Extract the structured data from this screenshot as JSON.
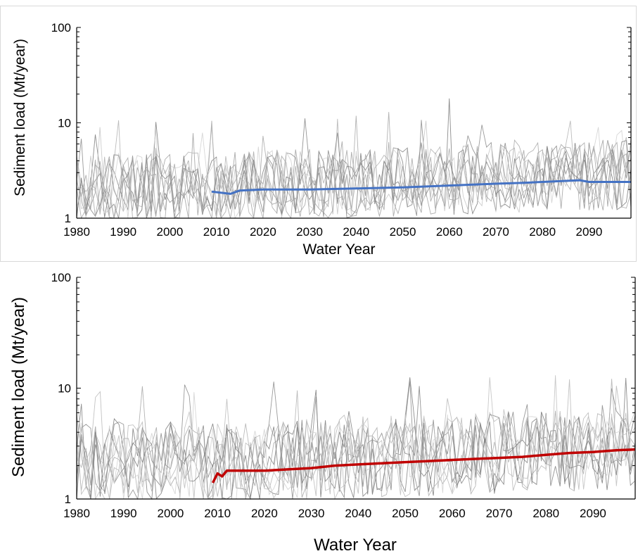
{
  "chart_data": [
    {
      "type": "line",
      "xlabel": "Water Year",
      "ylabel": "Sediment load (Mt/year)",
      "yscale": "log",
      "ylim": [
        1,
        100
      ],
      "xlim": [
        1980,
        2099
      ],
      "x_ticks": [
        "1980",
        "1990",
        "2000",
        "2010",
        "2020",
        "2030",
        "2040",
        "2050",
        "2060",
        "2070",
        "2080",
        "2090"
      ],
      "y_ticks": [
        "1",
        "10",
        "100"
      ],
      "grid": false,
      "ensemble_color": "#8a8a8a",
      "ensemble_spikes": [
        {
          "x": 1981,
          "y": 6.8
        },
        {
          "x": 1985,
          "y": 9.0
        },
        {
          "x": 2009,
          "y": 10.5
        },
        {
          "x": 2036,
          "y": 11.0
        },
        {
          "x": 2047,
          "y": 13.0
        },
        {
          "x": 2055,
          "y": 10.5
        },
        {
          "x": 2060,
          "y": 18.0
        },
        {
          "x": 2086,
          "y": 10.5
        },
        {
          "x": 2092,
          "y": 9.0
        }
      ],
      "series": [
        {
          "color": "#4472c4",
          "x": [
            2009,
            2013,
            2015,
            2020,
            2030,
            2040,
            2050,
            2060,
            2070,
            2076,
            2080,
            2088,
            2090,
            2099
          ],
          "y": [
            1.9,
            1.8,
            1.95,
            2.0,
            2.0,
            2.05,
            2.1,
            2.2,
            2.3,
            2.35,
            2.4,
            2.5,
            2.4,
            2.4
          ]
        }
      ]
    },
    {
      "type": "line",
      "xlabel": "Water Year",
      "ylabel": "Sediment load (Mt/year)",
      "yscale": "log",
      "ylim": [
        1,
        100
      ],
      "xlim": [
        1980,
        2099
      ],
      "x_ticks": [
        "1980",
        "1990",
        "2000",
        "2010",
        "2020",
        "2030",
        "2040",
        "2050",
        "2060",
        "2070",
        "2080",
        "2090"
      ],
      "y_ticks": [
        "1",
        "10",
        "100"
      ],
      "grid": false,
      "ensemble_color": "#8a8a8a",
      "ensemble_spikes": [
        {
          "x": 1985,
          "y": 9.3
        },
        {
          "x": 2004,
          "y": 8.5
        },
        {
          "x": 2012,
          "y": 8.0
        },
        {
          "x": 2051,
          "y": 12.5
        },
        {
          "x": 2068,
          "y": 12.5
        },
        {
          "x": 2085,
          "y": 12.0
        },
        {
          "x": 2095,
          "y": 10.5
        }
      ],
      "series": [
        {
          "color": "#c00000",
          "x": [
            2009,
            2010,
            2011,
            2012,
            2015,
            2020,
            2025,
            2030,
            2035,
            2040,
            2045,
            2050,
            2055,
            2060,
            2065,
            2070,
            2075,
            2080,
            2085,
            2090,
            2095,
            2099
          ],
          "y": [
            1.4,
            1.7,
            1.6,
            1.8,
            1.8,
            1.8,
            1.85,
            1.9,
            2.0,
            2.05,
            2.1,
            2.15,
            2.2,
            2.25,
            2.3,
            2.35,
            2.4,
            2.5,
            2.6,
            2.65,
            2.75,
            2.8
          ]
        }
      ]
    }
  ]
}
